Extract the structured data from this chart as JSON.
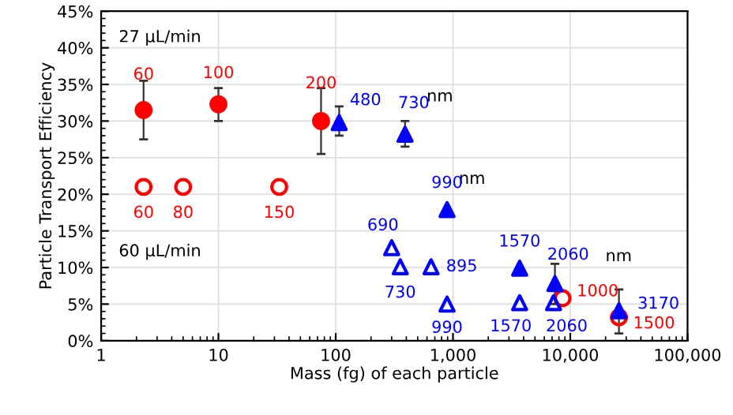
{
  "chart_data": {
    "type": "scatter",
    "xlabel": "Mass (fg) of each particle",
    "ylabel": "Particle Transport Efficiency",
    "log": "x",
    "grid": true,
    "xlim": [
      1,
      100000
    ],
    "xticks": [
      1,
      10,
      100,
      {
        "value": 1000,
        "label": "1,000"
      },
      {
        "value": 10000,
        "label": "10,000"
      },
      {
        "value": 100000,
        "label": "100,000"
      }
    ],
    "ylim": [
      0,
      45
    ],
    "yticks": [
      {
        "value": 0,
        "label": "0%"
      },
      {
        "value": 5,
        "label": "5%"
      },
      {
        "value": 10,
        "label": "10%"
      },
      {
        "value": 15,
        "label": "15%"
      },
      {
        "value": 20,
        "label": "20%"
      },
      {
        "value": 25,
        "label": "25%"
      },
      {
        "value": 30,
        "label": "30%"
      },
      {
        "value": 35,
        "label": "35%"
      },
      {
        "value": 40,
        "label": "40%"
      },
      {
        "value": 45,
        "label": "45%"
      }
    ],
    "series": [
      {
        "marker": "circle",
        "color": "#ff0000",
        "x": [
          2.3,
          10,
          75
        ],
        "values": [
          31.5,
          32.3,
          30
        ],
        "errors": [
          [
            27.5,
            35.5
          ],
          [
            30,
            34.5
          ],
          [
            25.5,
            34.5
          ]
        ]
      },
      {
        "marker": "circle-open",
        "color": "#ff0000",
        "x": [
          2.3,
          5,
          33,
          8600,
          26000
        ],
        "values": [
          21,
          21,
          21,
          5.8,
          3.2
        ]
      },
      {
        "marker": "triangle",
        "color": "#0000ff",
        "x": [
          107,
          390,
          890,
          3700,
          7400,
          26000
        ],
        "values": [
          29.8,
          28.2,
          17.9,
          9.9,
          7.8,
          4.1
        ],
        "errors": [
          [
            28,
            32
          ],
          [
            26.5,
            30
          ],
          null,
          null,
          [
            5,
            10.5
          ],
          [
            1,
            7
          ]
        ]
      },
      {
        "marker": "triangle-open",
        "color": "#0000ff",
        "x": [
          300,
          355,
          650,
          890,
          3700,
          7200
        ],
        "values": [
          12.7,
          10.1,
          10.1,
          5,
          5.2,
          5.2
        ]
      }
    ],
    "annotations": [
      "27 µL/min",
      "60 µL/min",
      "nm",
      "nm",
      "nm",
      {
        "text": "60",
        "x": 2.3,
        "y": 31.5
      },
      {
        "text": "100",
        "x": 10,
        "y": 32.3
      },
      {
        "text": "200",
        "x": 75,
        "y": 30
      },
      {
        "text": "60",
        "x": 2.3,
        "y": 21
      },
      {
        "text": "80",
        "x": 5,
        "y": 21
      },
      {
        "text": "150",
        "x": 33,
        "y": 21
      },
      {
        "text": "1000",
        "x": 8600,
        "y": 5.8
      },
      {
        "text": "1500",
        "x": 26000,
        "y": 3.2
      },
      {
        "text": "480",
        "x": 107,
        "y": 29.8
      },
      {
        "text": "730",
        "x": 390,
        "y": 28.2
      },
      {
        "text": "990",
        "x": 890,
        "y": 17.9
      },
      {
        "text": "1570",
        "x": 3700,
        "y": 9.9
      },
      {
        "text": "2060",
        "x": 7400,
        "y": 7.8
      },
      {
        "text": "3170",
        "x": 26000,
        "y": 4.1
      },
      {
        "text": "690",
        "x": 300,
        "y": 12.7
      },
      {
        "text": "730",
        "x": 355,
        "y": 10.1
      },
      {
        "text": "895",
        "x": 650,
        "y": 10.1
      },
      {
        "text": "990",
        "x": 890,
        "y": 5
      },
      {
        "text": "1570",
        "x": 3700,
        "y": 5.2
      },
      {
        "text": "2060",
        "x": 7200,
        "y": 5.2
      }
    ]
  }
}
